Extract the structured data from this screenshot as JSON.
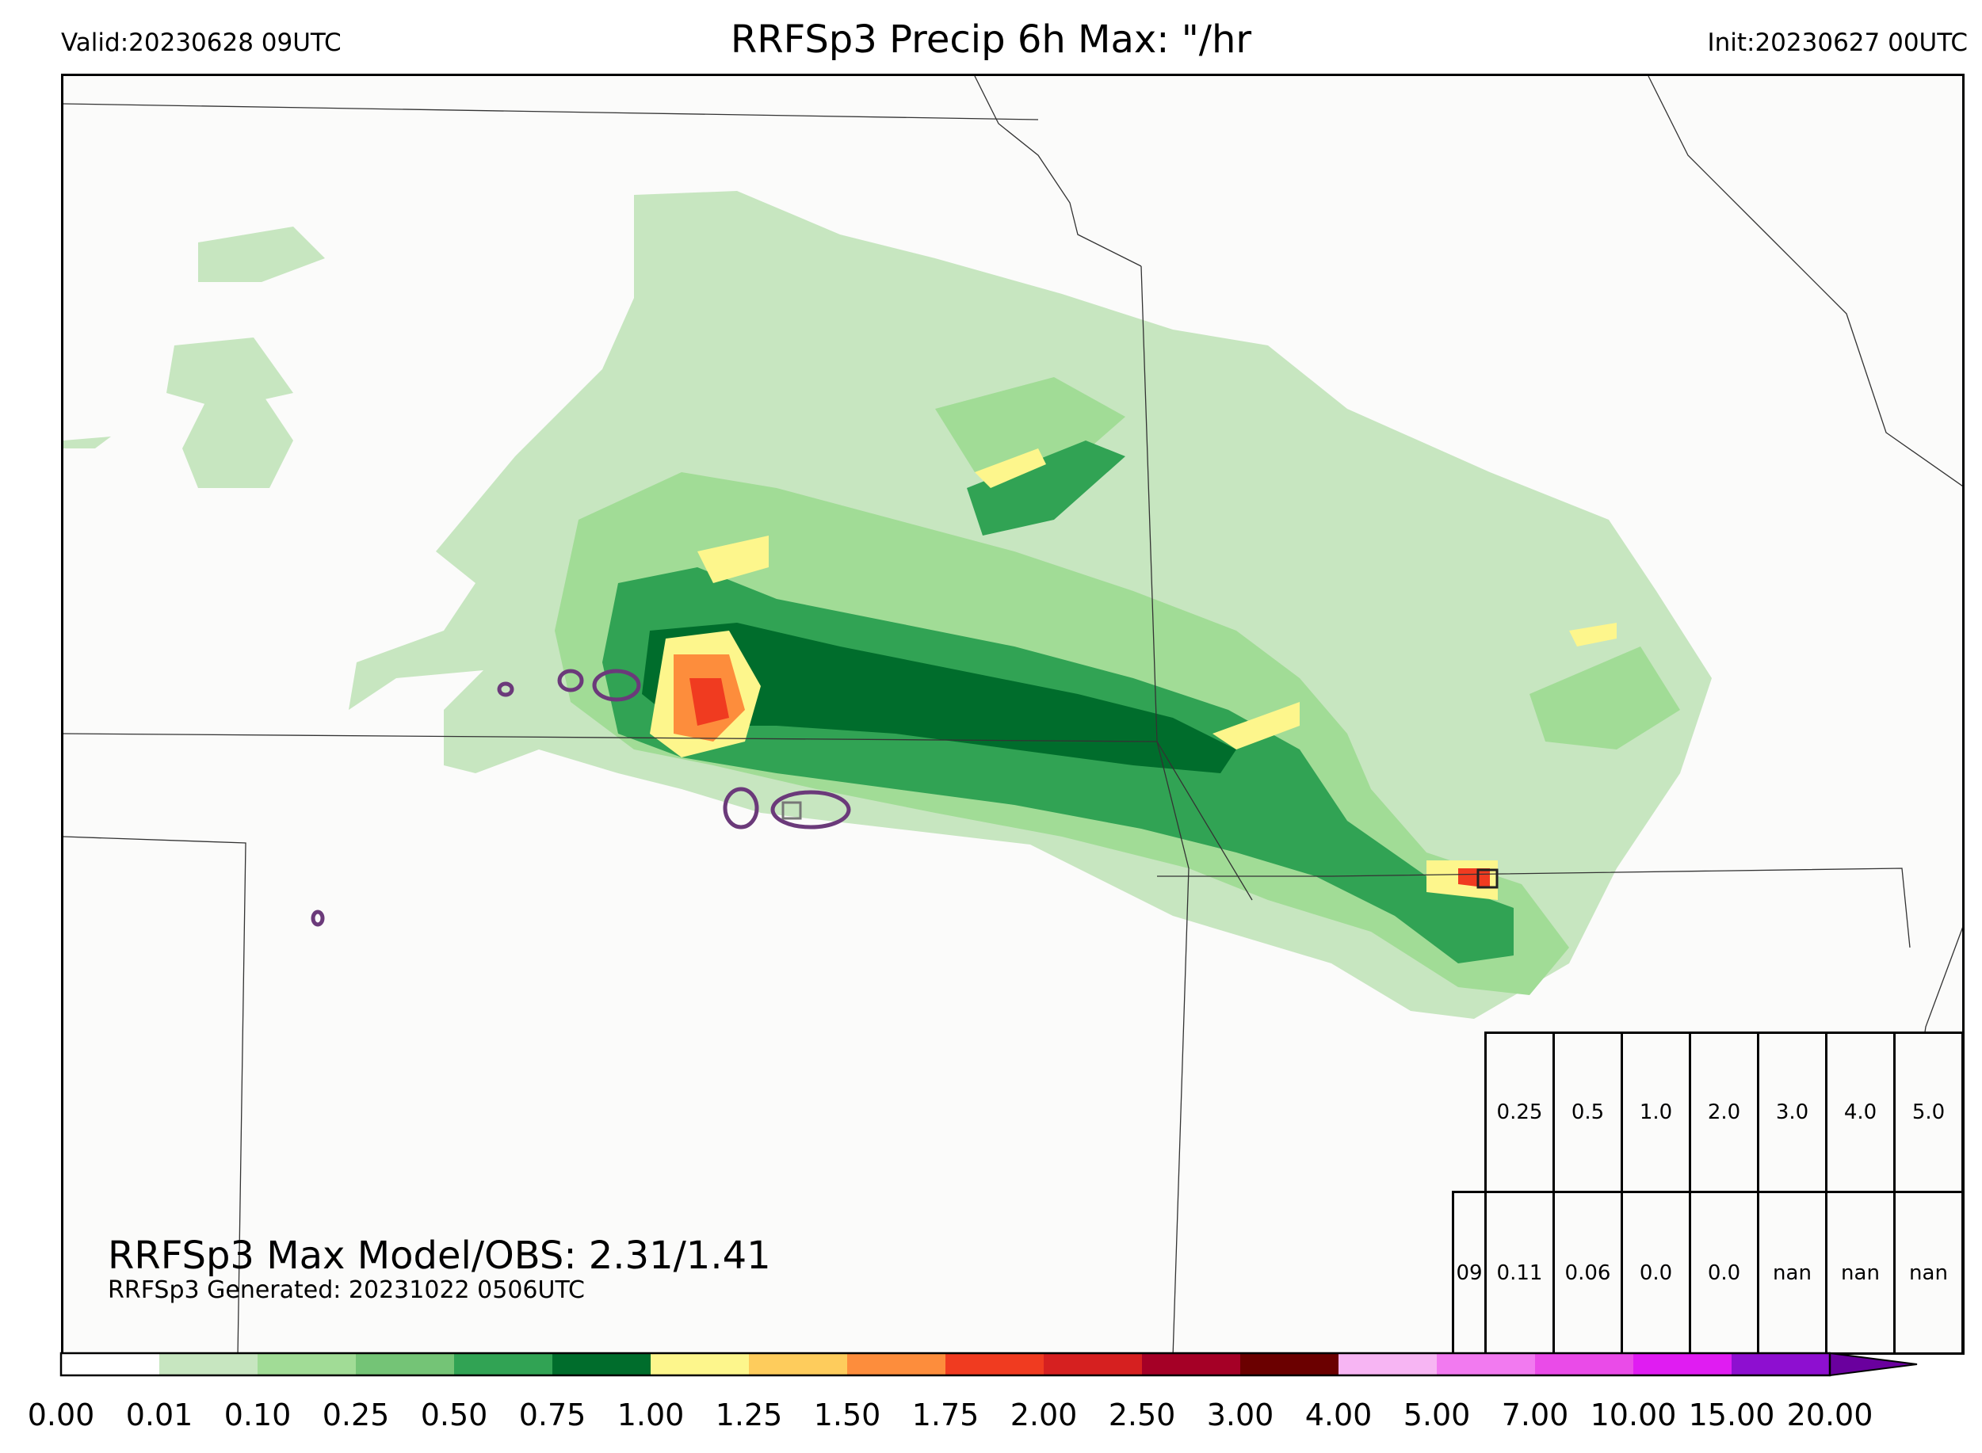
{
  "header": {
    "valid": "Valid:20230628 09UTC",
    "title": "RRFSp3 Precip 6h Max: \"/hr",
    "init": "Init:20230627 00UTC"
  },
  "stats": {
    "max_line": "RRFSp3 Max Model/OBS: 2.31/1.41",
    "generated_line": "RRFSp3 Generated: 20231022 0506UTC"
  },
  "colorbar": {
    "ticks": [
      "0.00",
      "0.01",
      "0.10",
      "0.25",
      "0.50",
      "0.75",
      "1.00",
      "1.25",
      "1.50",
      "1.75",
      "2.00",
      "2.50",
      "3.00",
      "4.00",
      "5.00",
      "7.00",
      "10.00",
      "15.00",
      "20.00"
    ],
    "colors": [
      "#ffffff",
      "#c7e6c0",
      "#a1dc96",
      "#74c476",
      "#31a354",
      "#006d2c",
      "#fdf68c",
      "#fecc5c",
      "#fd8d3c",
      "#f03b20",
      "#d62020",
      "#a50026",
      "#6b0000",
      "#f7b5f3",
      "#f27af0",
      "#ea4be8",
      "#e01cf2",
      "#8e0fd0"
    ],
    "extend_color": "#6a009e"
  },
  "threshold_table": {
    "header": [
      "0.25",
      "0.5",
      "1.0",
      "2.0",
      "3.0",
      "4.0",
      "5.0"
    ],
    "row_label": "09",
    "row": [
      "0.11",
      "0.06",
      "0.0",
      "0.0",
      "nan",
      "nan",
      "nan"
    ]
  },
  "map": {
    "background": "#fbfbfa",
    "boundary_color": "#333333",
    "obs_contour_color": "#6b3a7a"
  }
}
